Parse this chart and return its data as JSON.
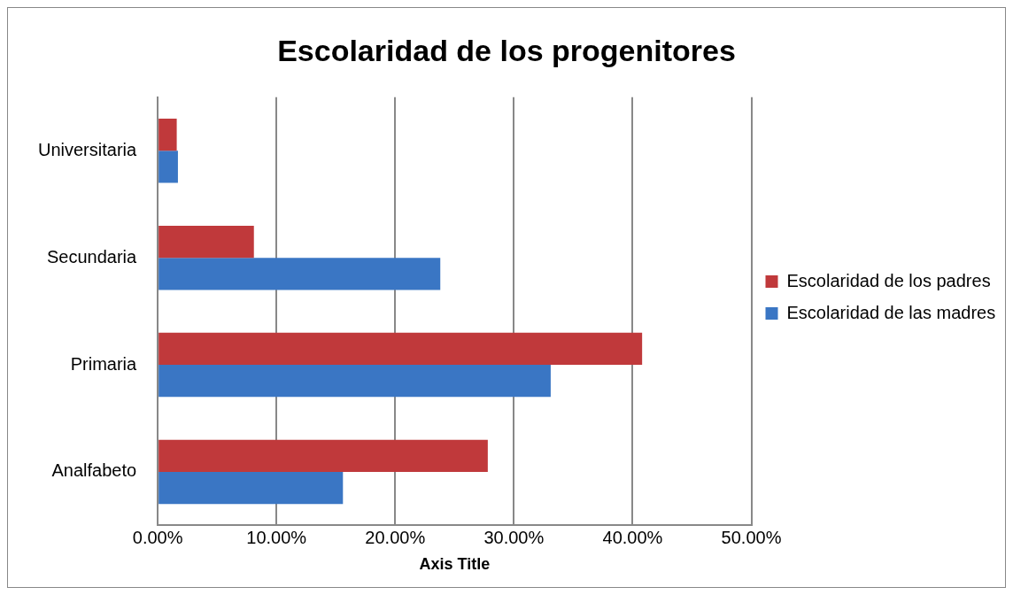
{
  "chart_data": {
    "type": "bar",
    "orientation": "horizontal",
    "title": "Escolaridad de los progenitores",
    "xlabel": "Axis Title",
    "categories": [
      "Universitaria",
      "Secundaria",
      "Primaria",
      "Analfabeto"
    ],
    "series": [
      {
        "name": "Escolaridad de los padres",
        "color": "#c0393b",
        "values": [
          1.6,
          8.1,
          40.8,
          27.8
        ]
      },
      {
        "name": "Escolaridad de las madres",
        "color": "#3a76c4",
        "values": [
          1.7,
          23.8,
          33.1,
          15.6
        ]
      }
    ],
    "xlim": [
      0,
      50
    ],
    "xticks": [
      {
        "value": 0,
        "label": "0.00%"
      },
      {
        "value": 10,
        "label": "10.00%"
      },
      {
        "value": 20,
        "label": "20.00%"
      },
      {
        "value": 30,
        "label": "30.00%"
      },
      {
        "value": 40,
        "label": "40.00%"
      },
      {
        "value": 50,
        "label": "50.00%"
      }
    ],
    "grid": "x",
    "legend": "right"
  }
}
